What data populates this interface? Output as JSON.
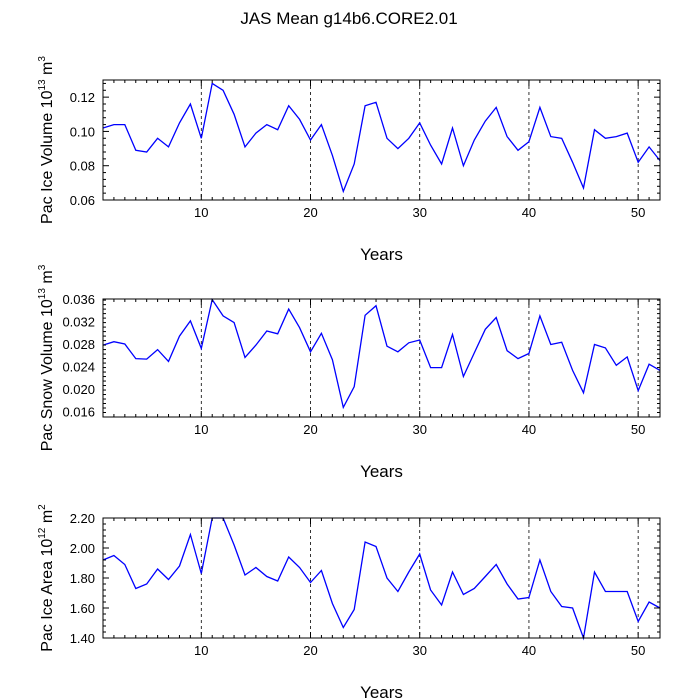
{
  "page": {
    "title": "JAS Mean g14b6.CORE2.01"
  },
  "colors": {
    "line": "#0000ff",
    "axis": "#000000",
    "grid": "#000000"
  },
  "chart_data": [
    {
      "type": "line",
      "title": "JAS Mean g14b6.CORE2.01",
      "xlabel": "Years",
      "ylabel": {
        "prefix": "Pac Ice Volume 10",
        "exp": "13",
        "unit": " m",
        "unit_exp": "3"
      },
      "xlim": [
        1,
        52
      ],
      "ylim": [
        0.06,
        0.13
      ],
      "xticks": [
        10,
        20,
        30,
        40,
        50
      ],
      "xtick_labels": [
        "10",
        "20",
        "30",
        "40",
        "50"
      ],
      "yticks": [
        0.06,
        0.08,
        0.1,
        0.12
      ],
      "ytick_labels": [
        "0.06",
        "0.08",
        "0.10",
        "0.12"
      ],
      "grid_x": [
        10,
        20,
        30,
        40,
        50
      ],
      "x": [
        1,
        2,
        3,
        4,
        5,
        6,
        7,
        8,
        9,
        10,
        11,
        12,
        13,
        14,
        15,
        16,
        17,
        18,
        19,
        20,
        21,
        22,
        23,
        24,
        25,
        26,
        27,
        28,
        29,
        30,
        31,
        32,
        33,
        34,
        35,
        36,
        37,
        38,
        39,
        40,
        41,
        42,
        43,
        44,
        45,
        46,
        47,
        48,
        49,
        50,
        51,
        52
      ],
      "y": [
        0.102,
        0.104,
        0.104,
        0.089,
        0.088,
        0.096,
        0.091,
        0.105,
        0.116,
        0.096,
        0.128,
        0.124,
        0.11,
        0.091,
        0.099,
        0.104,
        0.101,
        0.115,
        0.107,
        0.095,
        0.104,
        0.086,
        0.065,
        0.081,
        0.115,
        0.117,
        0.096,
        0.09,
        0.096,
        0.105,
        0.092,
        0.081,
        0.102,
        0.08,
        0.095,
        0.106,
        0.114,
        0.097,
        0.089,
        0.094,
        0.114,
        0.097,
        0.096,
        0.082,
        0.067,
        0.101,
        0.096,
        0.097,
        0.099,
        0.082,
        0.091,
        0.083
      ]
    },
    {
      "type": "line",
      "xlabel": "Years",
      "ylabel": {
        "prefix": "Pac Snow Volume 10",
        "exp": "13",
        "unit": " m",
        "unit_exp": "3"
      },
      "xlim": [
        1,
        52
      ],
      "ylim": [
        0.015,
        0.036
      ],
      "xticks": [
        10,
        20,
        30,
        40,
        50
      ],
      "xtick_labels": [
        "10",
        "20",
        "30",
        "40",
        "50"
      ],
      "yticks": [
        0.016,
        0.02,
        0.024,
        0.028,
        0.032,
        0.036
      ],
      "ytick_labels": [
        "0.016",
        "0.020",
        "0.024",
        "0.028",
        "0.032",
        "0.036"
      ],
      "grid_x": [
        10,
        20,
        30,
        40,
        50
      ],
      "x": [
        1,
        2,
        3,
        4,
        5,
        6,
        7,
        8,
        9,
        10,
        11,
        12,
        13,
        14,
        15,
        16,
        17,
        18,
        19,
        20,
        21,
        22,
        23,
        24,
        25,
        26,
        27,
        28,
        29,
        30,
        31,
        32,
        33,
        34,
        35,
        36,
        37,
        38,
        39,
        40,
        41,
        42,
        43,
        44,
        45,
        46,
        47,
        48,
        49,
        50,
        51,
        52
      ],
      "y": [
        0.0278,
        0.0284,
        0.028,
        0.0254,
        0.0253,
        0.027,
        0.0249,
        0.0294,
        0.0321,
        0.0272,
        0.0359,
        0.033,
        0.0318,
        0.0256,
        0.0278,
        0.0303,
        0.0298,
        0.0342,
        0.0309,
        0.0266,
        0.0299,
        0.0252,
        0.0167,
        0.0204,
        0.0331,
        0.0348,
        0.0276,
        0.0266,
        0.0282,
        0.0287,
        0.0238,
        0.0238,
        0.0297,
        0.0222,
        0.0264,
        0.0306,
        0.0327,
        0.0268,
        0.0254,
        0.0263,
        0.033,
        0.0279,
        0.0283,
        0.0233,
        0.0193,
        0.0279,
        0.0273,
        0.0242,
        0.0257,
        0.0197,
        0.0244,
        0.0233
      ]
    },
    {
      "type": "line",
      "xlabel": "Years",
      "ylabel": {
        "prefix": "Pac Ice Area 10",
        "exp": "12",
        "unit": " m",
        "unit_exp": "2"
      },
      "xlim": [
        1,
        52
      ],
      "ylim": [
        1.4,
        2.2
      ],
      "xticks": [
        10,
        20,
        30,
        40,
        50
      ],
      "xtick_labels": [
        "10",
        "20",
        "30",
        "40",
        "50"
      ],
      "yticks": [
        1.4,
        1.6,
        1.8,
        2.0,
        2.2
      ],
      "ytick_labels": [
        "1.40",
        "1.60",
        "1.80",
        "2.00",
        "2.20"
      ],
      "grid_x": [
        10,
        20,
        30,
        40,
        50
      ],
      "x": [
        1,
        2,
        3,
        4,
        5,
        6,
        7,
        8,
        9,
        10,
        11,
        12,
        13,
        14,
        15,
        16,
        17,
        18,
        19,
        20,
        21,
        22,
        23,
        24,
        25,
        26,
        27,
        28,
        29,
        30,
        31,
        32,
        33,
        34,
        35,
        36,
        37,
        38,
        39,
        40,
        41,
        42,
        43,
        44,
        45,
        46,
        47,
        48,
        49,
        50,
        51,
        52
      ],
      "y": [
        1.92,
        1.95,
        1.89,
        1.73,
        1.76,
        1.86,
        1.79,
        1.88,
        2.09,
        1.83,
        2.2,
        2.2,
        2.02,
        1.82,
        1.87,
        1.81,
        1.78,
        1.94,
        1.87,
        1.77,
        1.85,
        1.63,
        1.47,
        1.59,
        2.04,
        2.01,
        1.8,
        1.71,
        1.84,
        1.96,
        1.72,
        1.62,
        1.84,
        1.69,
        1.73,
        1.81,
        1.89,
        1.76,
        1.66,
        1.67,
        1.92,
        1.71,
        1.61,
        1.6,
        1.4,
        1.84,
        1.71,
        1.71,
        1.71,
        1.51,
        1.64,
        1.6
      ]
    }
  ]
}
